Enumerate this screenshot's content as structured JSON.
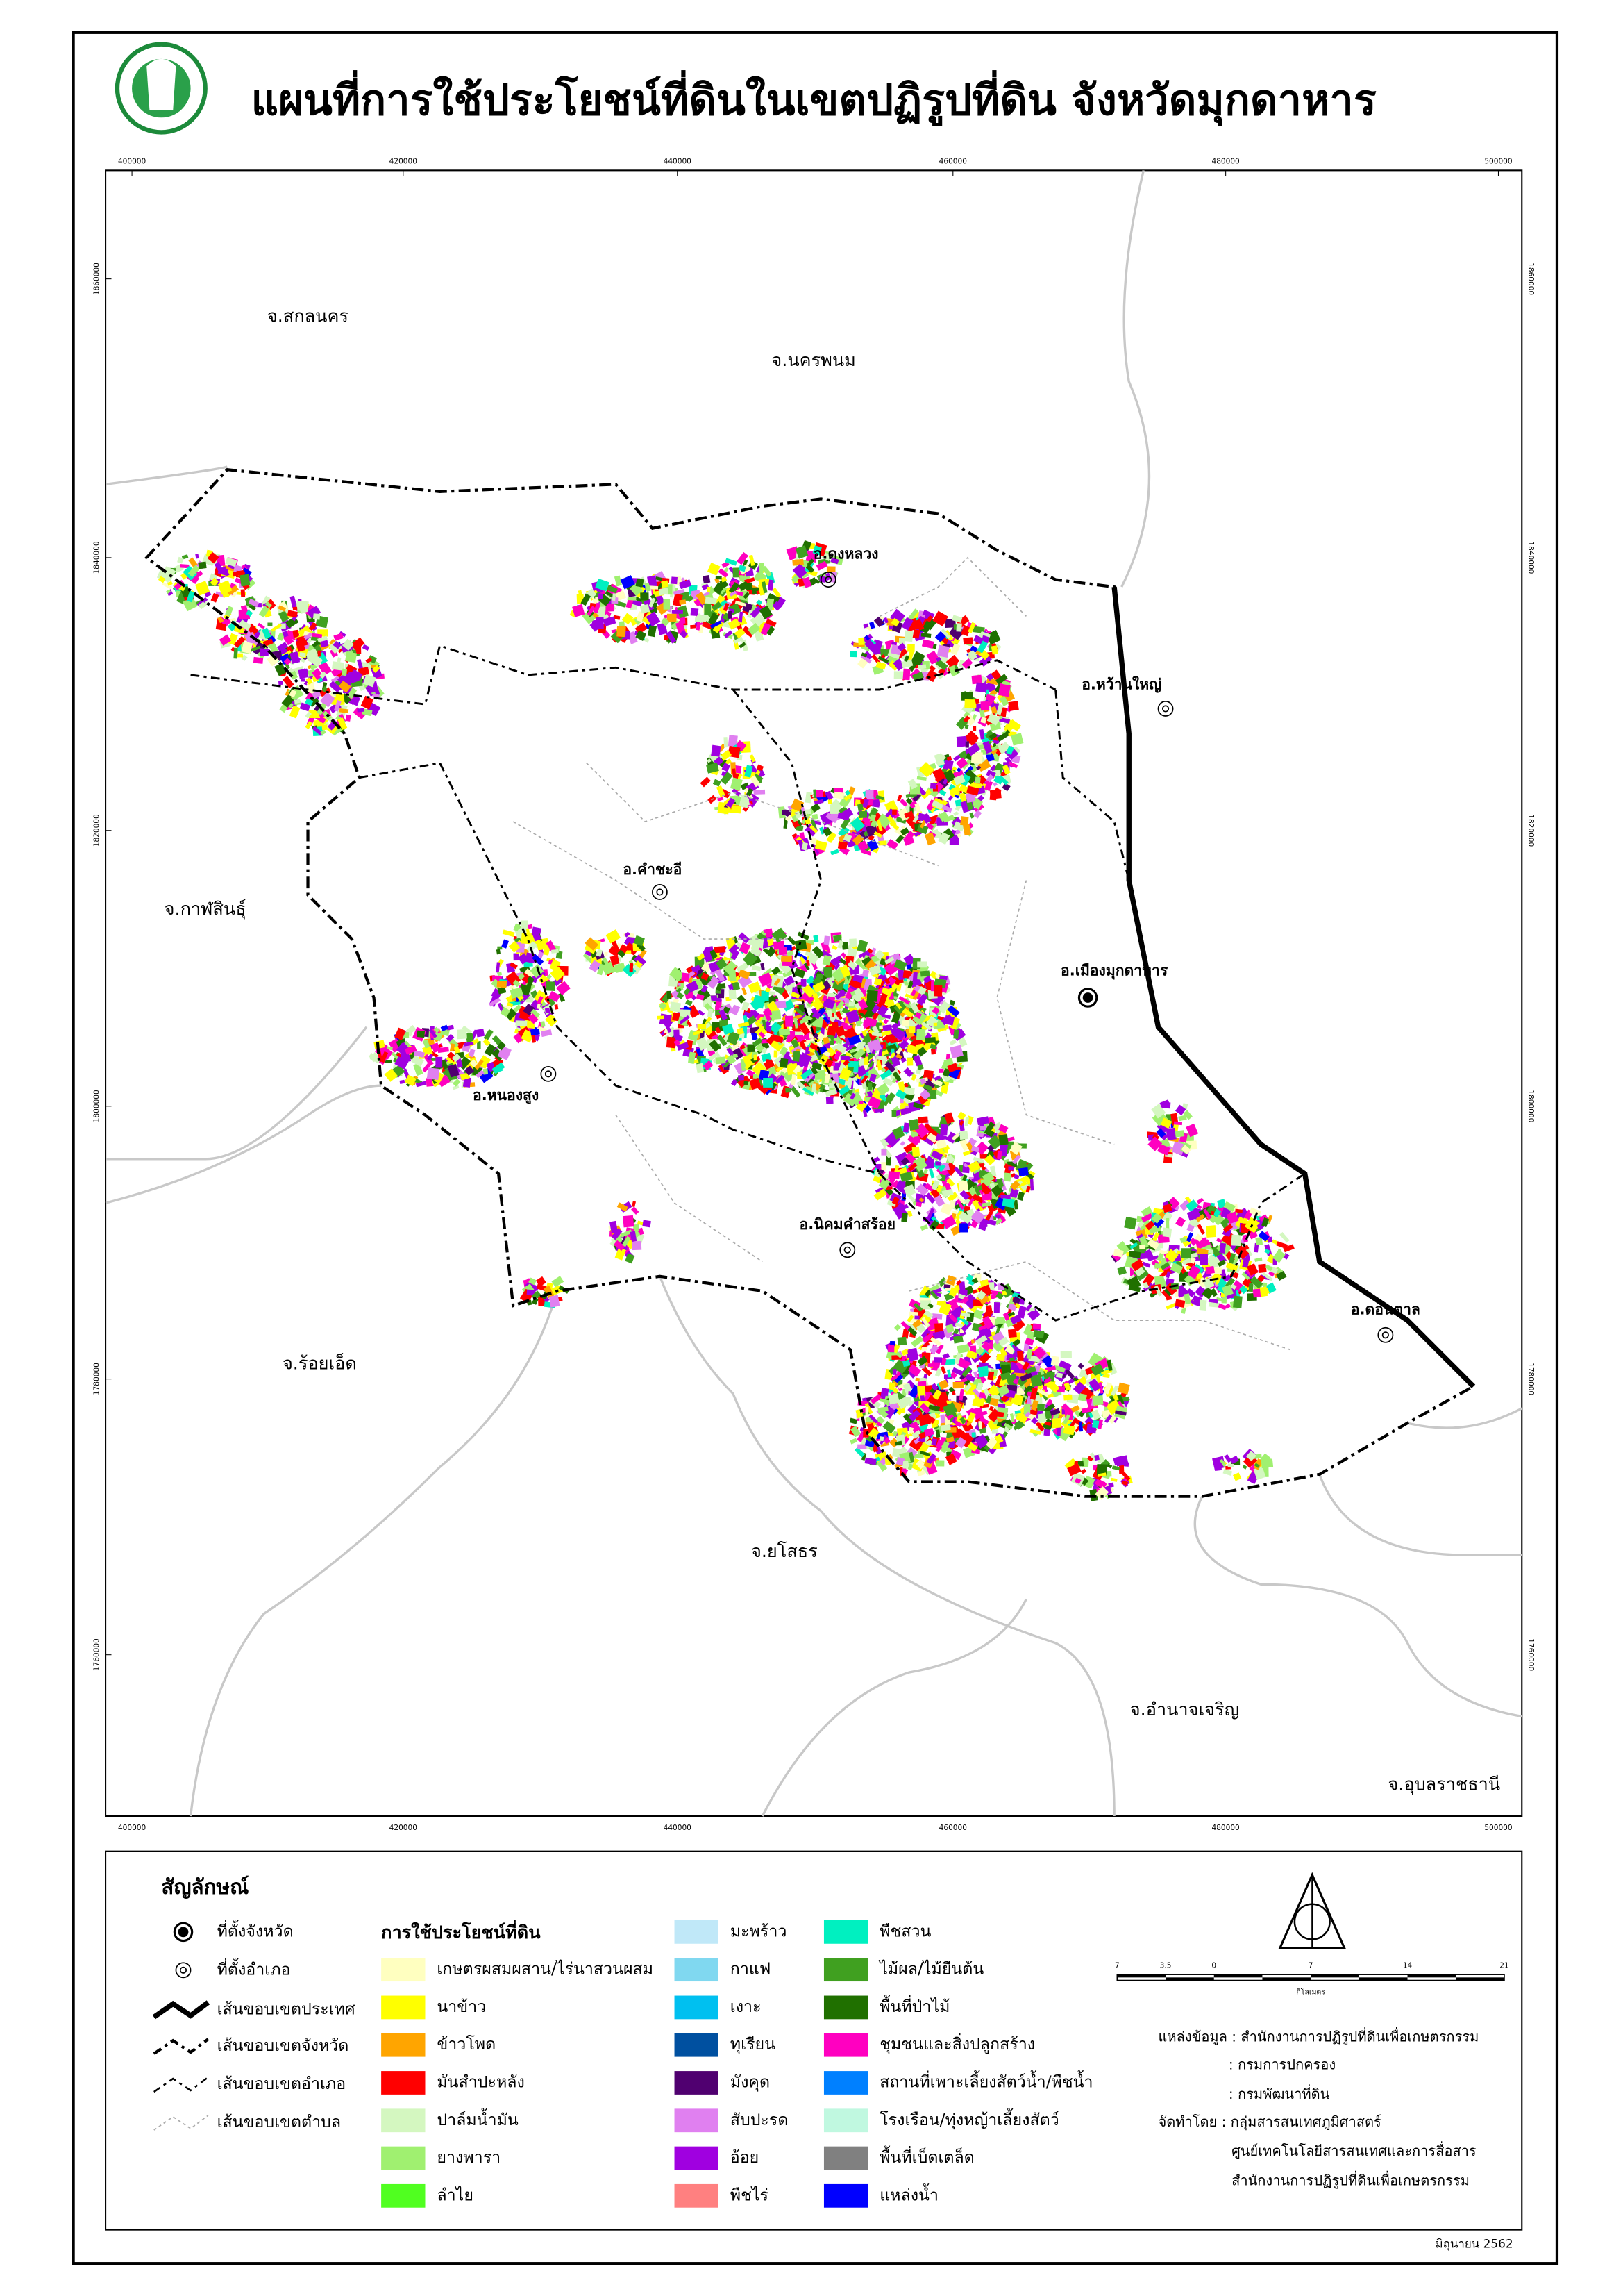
{
  "title": "แผนที่การใช้ประโยชน์ที่ดินในเขตปฏิรูปที่ดิน จังหวัดมุกดาหาร",
  "map": {
    "provinces": [
      "จ.สกลนคร",
      "จ.นครพนม",
      "จ.กาฬสินธุ์",
      "จ.ร้อยเอ็ด",
      "จ.ยโสธร",
      "จ.อำนาจเจริญ",
      "จ.อุบลราชธานี"
    ],
    "districts": [
      "อ.ดงหลวง",
      "อ.หว้านใหญ่",
      "อ.คำชะอี",
      "อ.เมืองมุกดาหาร",
      "อ.หนองสูง",
      "อ.นิคมคำสร้อย",
      "อ.ดอนตาล"
    ],
    "x_ticks": [
      400000,
      420000,
      440000,
      460000,
      480000,
      500000
    ],
    "y_ticks": [
      1860000,
      1840000,
      1820000,
      1800000,
      1780000,
      1760000
    ]
  },
  "legend": {
    "title": "สัญลักษณ์",
    "symbols": [
      "ที่ตั้งจังหวัด",
      "ที่ตั้งอำเภอ",
      "เส้นขอบเขตประเทศ",
      "เส้นขอบเขตจังหวัด",
      "เส้นขอบเขตอำเภอ",
      "เส้นขอบเขตตำบล"
    ],
    "land_use_title": "การใช้ประโยชน์ที่ดิน",
    "land_use": [
      {
        "name": "เกษตรผสมผสาน/ไร่นาสวนผสม",
        "color": "#ffffc0"
      },
      {
        "name": "นาข้าว",
        "color": "#ffff00"
      },
      {
        "name": "ข้าวโพด",
        "color": "#ffa500"
      },
      {
        "name": "มันสำปะหลัง",
        "color": "#ff0000"
      },
      {
        "name": "ปาล์มน้ำมัน",
        "color": "#d4f7c0"
      },
      {
        "name": "ยางพารา",
        "color": "#a0f070"
      },
      {
        "name": "ลำไย",
        "color": "#50ff20"
      },
      {
        "name": "มะพร้าว",
        "color": "#c0e8f8"
      },
      {
        "name": "กาแฟ",
        "color": "#80d8f0"
      },
      {
        "name": "เงาะ",
        "color": "#00c0f0"
      },
      {
        "name": "ทุเรียน",
        "color": "#0050a0"
      },
      {
        "name": "มังคุด",
        "color": "#500070"
      },
      {
        "name": "สับปะรด",
        "color": "#e080f0"
      },
      {
        "name": "อ้อย",
        "color": "#a000e0"
      },
      {
        "name": "พืชไร่",
        "color": "#ff8080"
      },
      {
        "name": "พืชสวน",
        "color": "#00f0c0"
      },
      {
        "name": "ไม้ผล/ไม้ยืนต้น",
        "color": "#40a020"
      },
      {
        "name": "พื้นที่ป่าไม้",
        "color": "#207000"
      },
      {
        "name": "ชุมชนและสิ่งปลูกสร้าง",
        "color": "#ff00c0"
      },
      {
        "name": "สถานที่เพาะเลี้ยงสัตว์น้ำ/พืชน้ำ",
        "color": "#0080ff"
      },
      {
        "name": "โรงเรือน/ทุ่งหญ้าเลี้ยงสัตว์",
        "color": "#c0f8e0"
      },
      {
        "name": "พื้นที่เบ็ดเตล็ด",
        "color": "#808080"
      },
      {
        "name": "แหล่งน้ำ",
        "color": "#0000ff"
      }
    ]
  },
  "scale_bar": {
    "labels": [
      7,
      3.5,
      0,
      7,
      14,
      21
    ],
    "unit": "กิโลเมตร"
  },
  "source": [
    "แหล่งข้อมูล : สำนักงานการปฏิรูปที่ดินเพื่อเกษตรกรรม",
    ": กรมการปกครอง",
    ": กรมพัฒนาที่ดิน",
    "จัดทำโดย : กลุ่มสารสนเทศภูมิศาสตร์",
    "ศูนย์เทคโนโลยีสารสนเทศและการสื่อสาร",
    "สำนักงานการปฏิรูปที่ดินเพื่อเกษตรกรรม"
  ],
  "date": "มิถุนายน 2562"
}
